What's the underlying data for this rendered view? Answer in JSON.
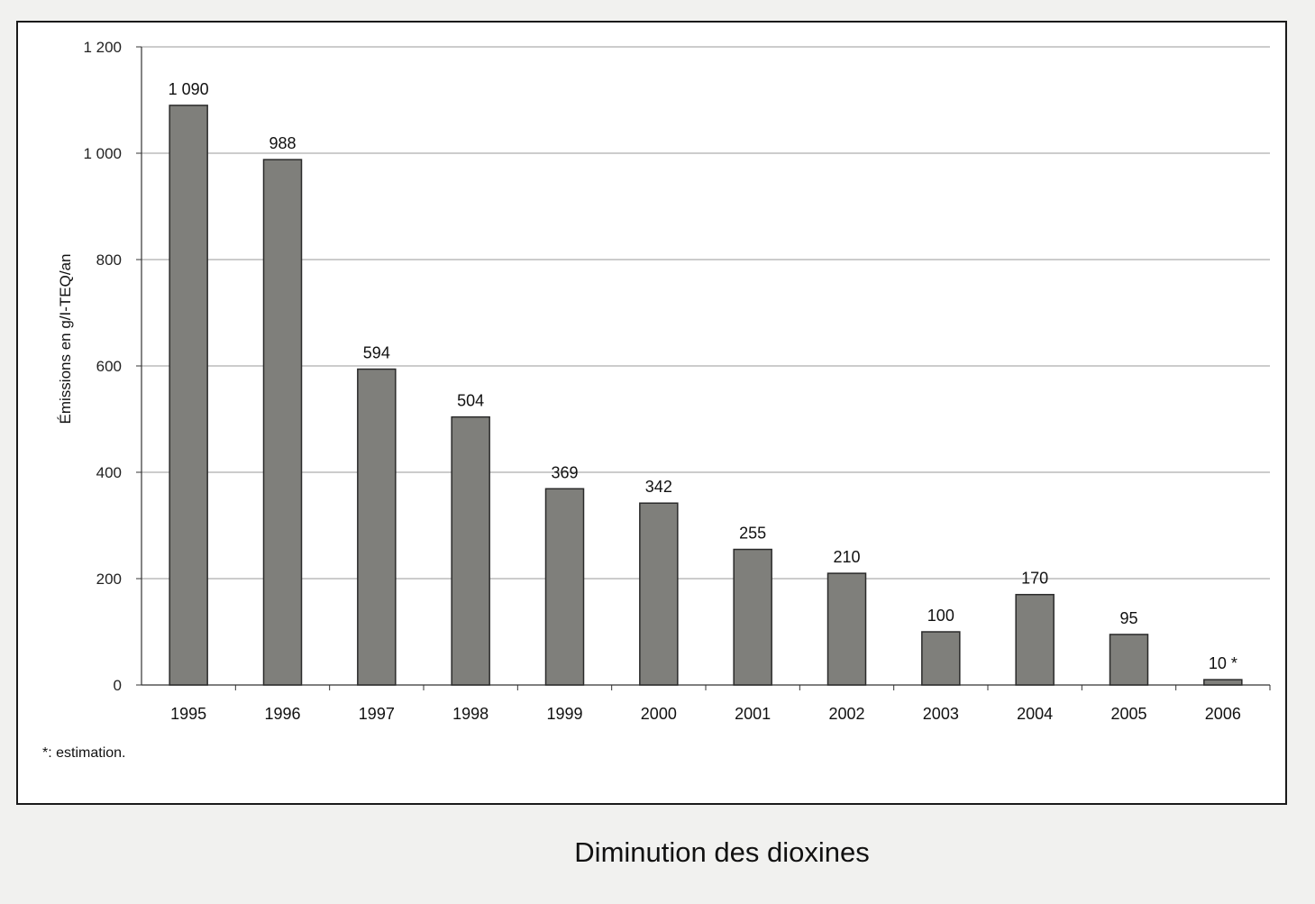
{
  "chart_data": {
    "type": "bar",
    "categories": [
      "1995",
      "1996",
      "1997",
      "1998",
      "1999",
      "2000",
      "2001",
      "2002",
      "2003",
      "2004",
      "2005",
      "2006"
    ],
    "values": [
      1090,
      988,
      594,
      504,
      369,
      342,
      255,
      210,
      100,
      170,
      95,
      10
    ],
    "data_labels": [
      "1 090",
      "988",
      "594",
      "504",
      "369",
      "342",
      "255",
      "210",
      "100",
      "170",
      "95",
      "10 *"
    ],
    "ylabel": "Émissions en g/I-TEQ/an",
    "ylim": [
      0,
      1200
    ],
    "yticks": [
      0,
      200,
      400,
      600,
      800,
      1000,
      1200
    ],
    "ytick_labels": [
      "0",
      "200",
      "400",
      "600",
      "800",
      "1 000",
      "1 200"
    ],
    "grid": true,
    "bar_color": "#7f7f7b",
    "footnote": "*: estimation."
  },
  "caption": "Diminution des dioxines"
}
